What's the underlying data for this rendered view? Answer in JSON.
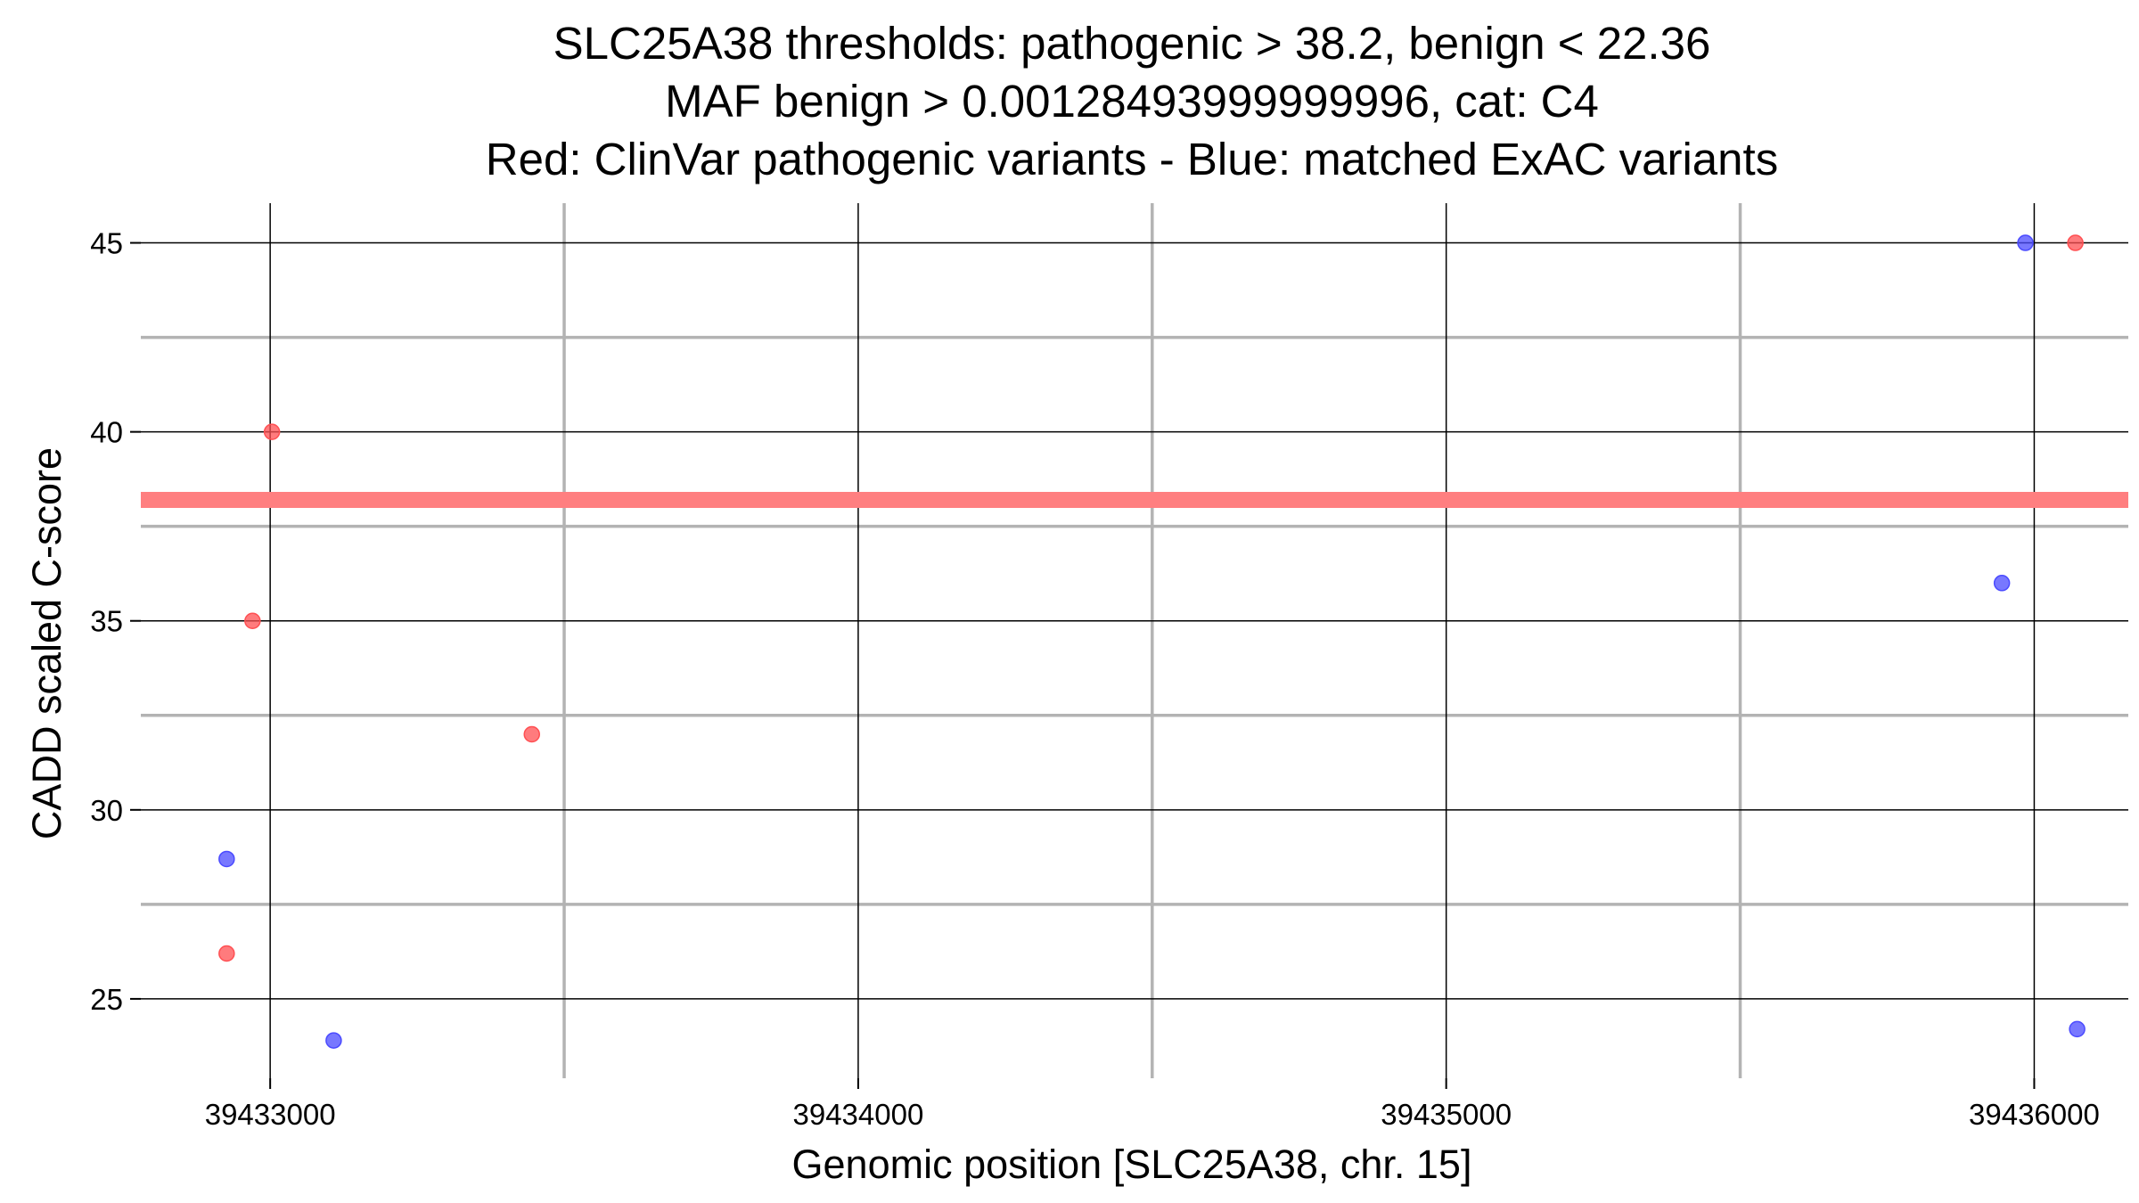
{
  "chart_data": {
    "type": "scatter",
    "title_lines": [
      "SLC25A38 thresholds: pathogenic > 38.2, benign < 22.36",
      "MAF benign > 0.00128493999999996, cat: C4",
      "Red: ClinVar pathogenic variants - Blue: matched ExAC variants"
    ],
    "xlabel": "Genomic position [SLC25A38, chr. 15]",
    "ylabel": "CADD scaled C-score",
    "xlim": [
      39432780,
      39436160
    ],
    "ylim": [
      22.9,
      46.05
    ],
    "x_ticks": [
      39433000,
      39434000,
      39435000,
      39436000
    ],
    "x_tick_labels": [
      "39433000",
      "39434000",
      "39435000",
      "39436000"
    ],
    "y_ticks": [
      25,
      30,
      35,
      40,
      45
    ],
    "y_tick_labels": [
      "25",
      "30",
      "35",
      "40",
      "45"
    ],
    "x_minor_gridlines": [
      39433500,
      39434500,
      39435500
    ],
    "y_minor_gridlines": [
      27.5,
      32.5,
      37.5,
      42.5
    ],
    "grid": true,
    "threshold_line": {
      "y": 38.2,
      "color": "#ff7f80"
    },
    "series": [
      {
        "color": "#ff4f52",
        "points": [
          {
            "x": 39433003,
            "y": 40.0
          },
          {
            "x": 39432970,
            "y": 35.0
          },
          {
            "x": 39433445,
            "y": 32.0
          },
          {
            "x": 39432926,
            "y": 26.2
          },
          {
            "x": 39436070,
            "y": 45.0
          }
        ]
      },
      {
        "color": "#4b4bff",
        "points": [
          {
            "x": 39432926,
            "y": 28.7
          },
          {
            "x": 39433108,
            "y": 23.9
          },
          {
            "x": 39435985,
            "y": 45.0
          },
          {
            "x": 39435945,
            "y": 36.0
          },
          {
            "x": 39436073,
            "y": 24.2
          }
        ]
      }
    ]
  }
}
